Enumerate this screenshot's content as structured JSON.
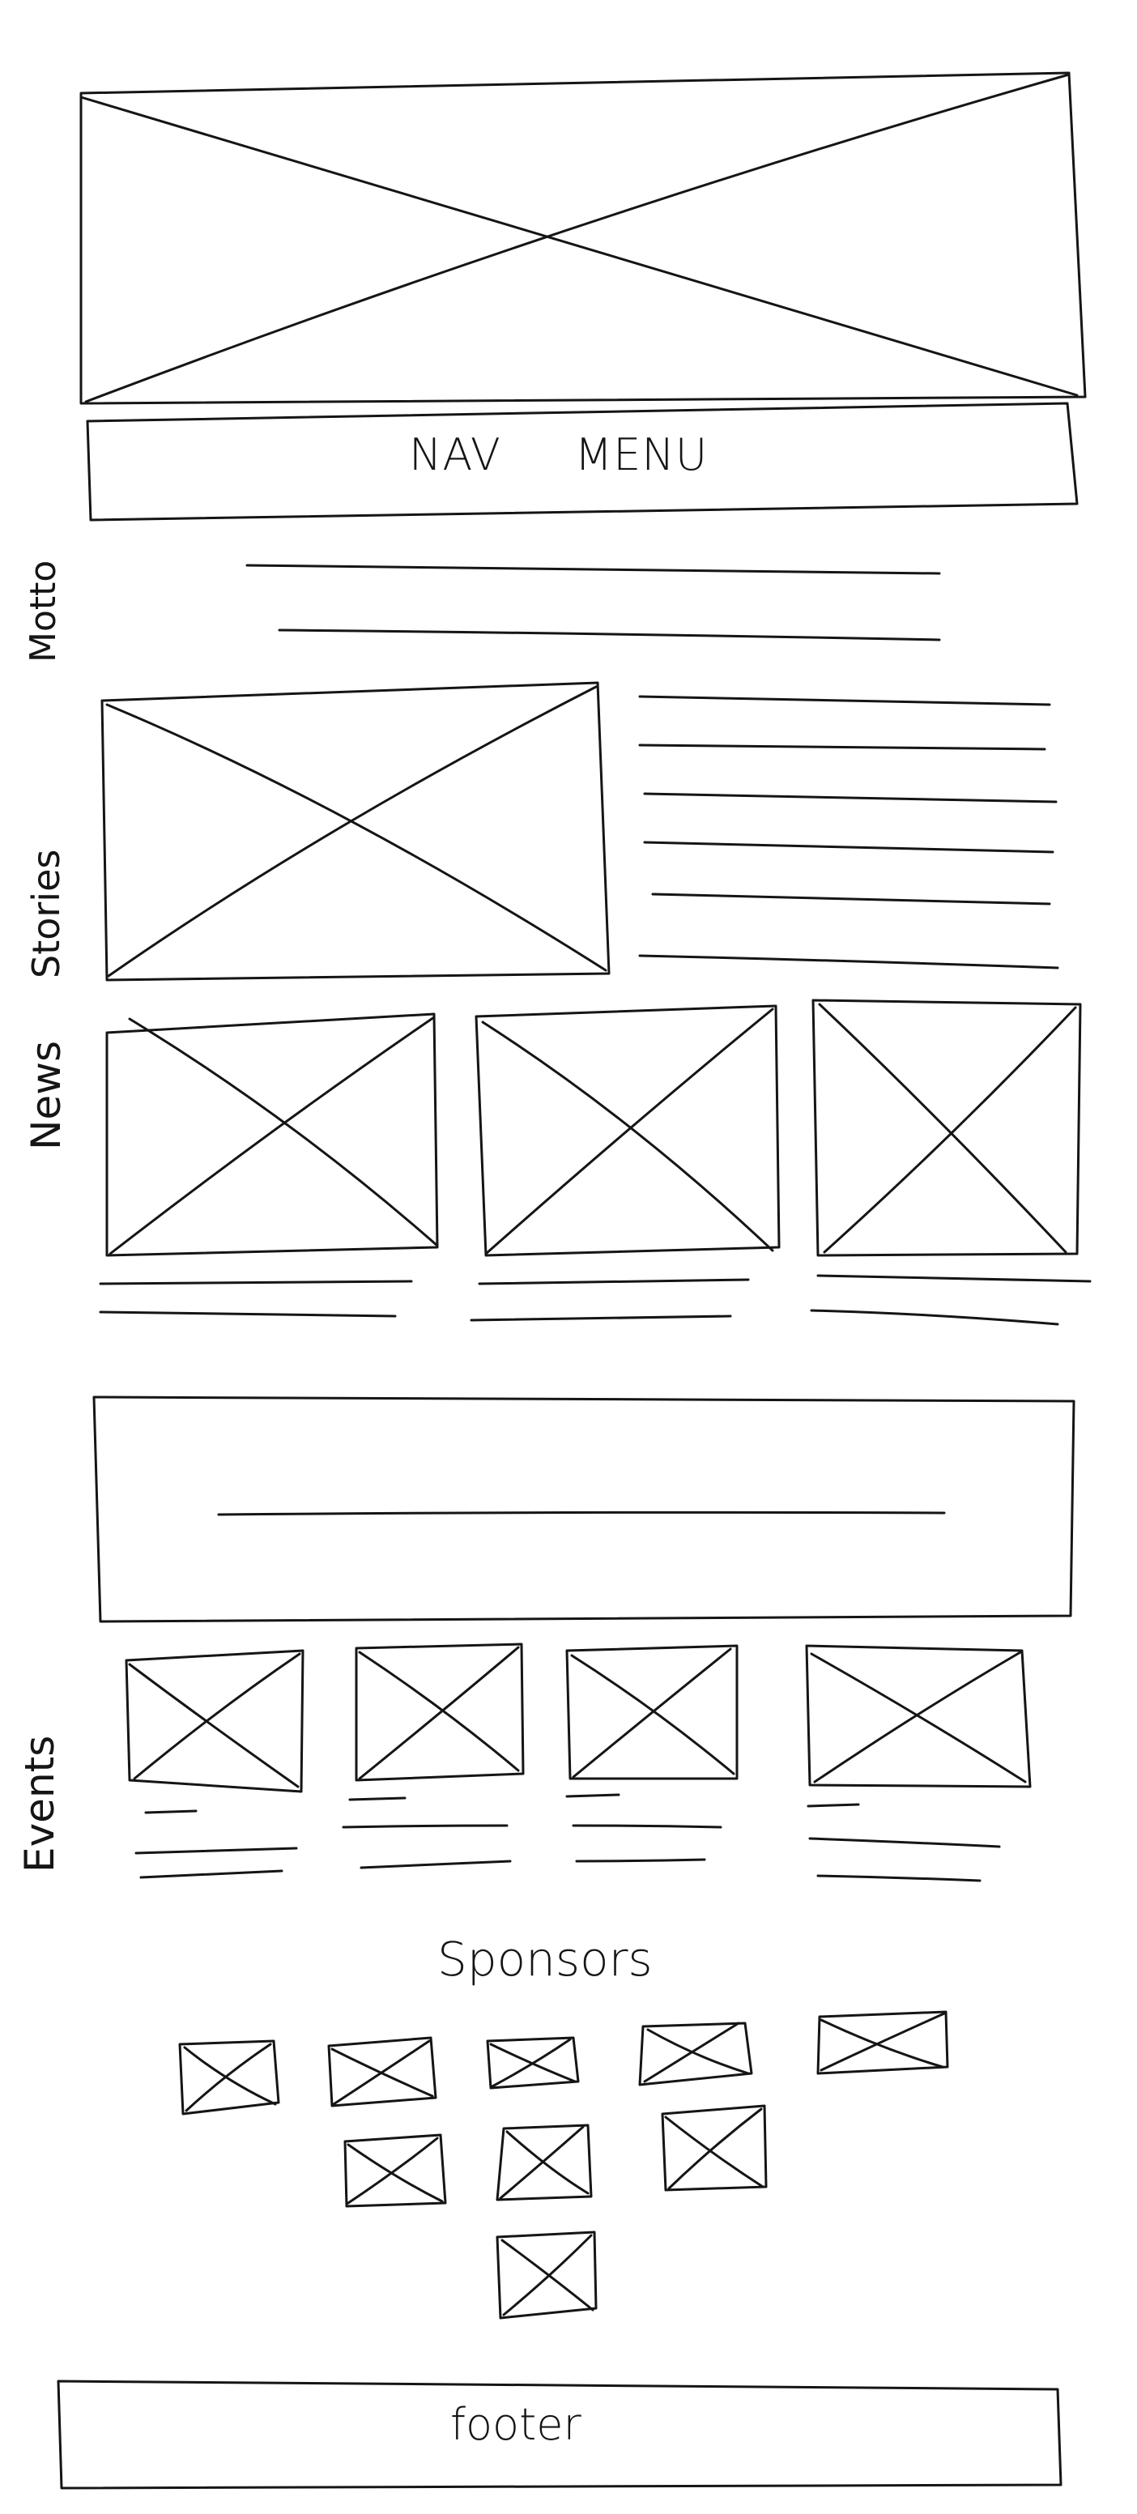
{
  "nav": {
    "label": "NAV     MENU"
  },
  "sections": {
    "motto": "Motto",
    "stories": "Stories",
    "news": "News",
    "events": "Events",
    "sponsors": "Sponsors",
    "footer": "footer"
  },
  "colors": {
    "ink": "#151515",
    "paper": "#ffffff"
  }
}
